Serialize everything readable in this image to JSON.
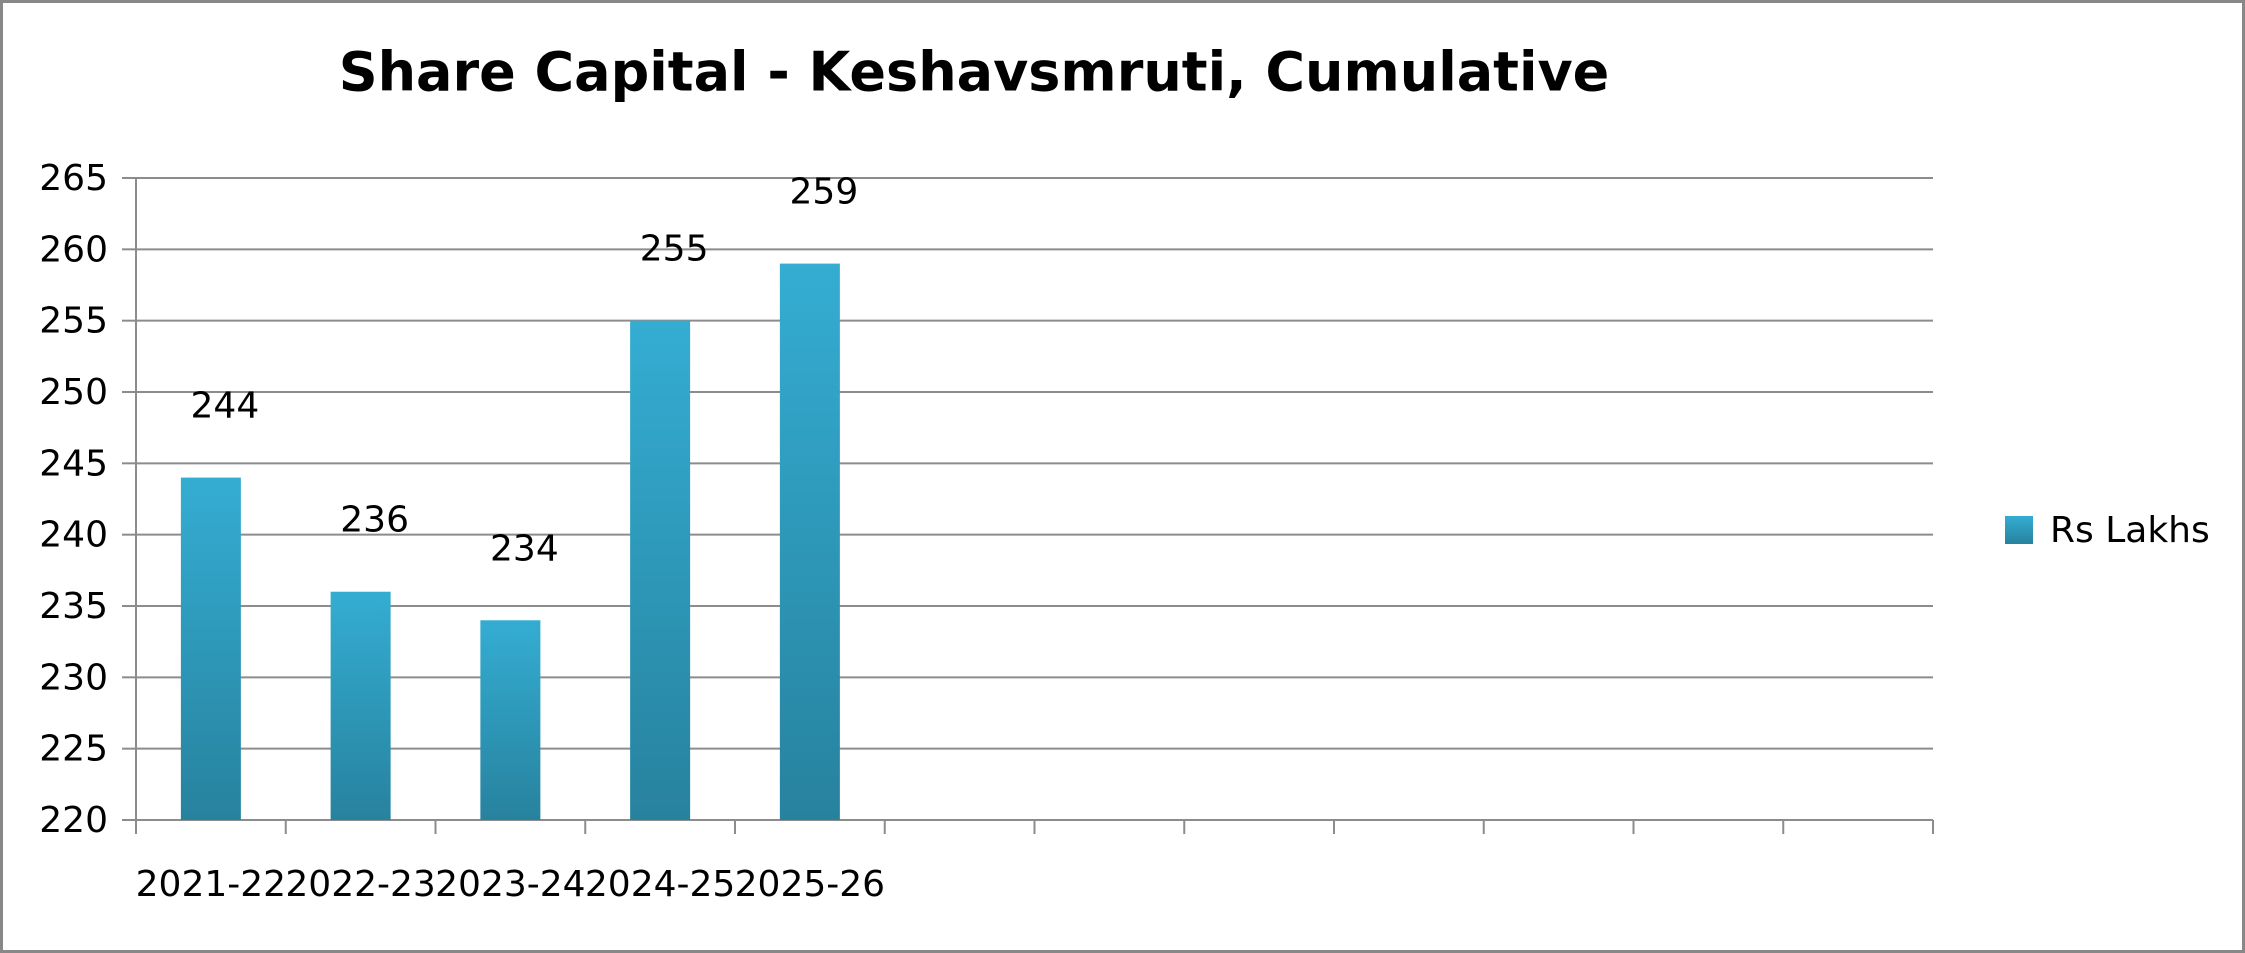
{
  "chart_data": {
    "type": "bar",
    "title": "Share Capital - Keshavsmruti, Cumulative",
    "categories": [
      "2021-22",
      "2022-23",
      "2023-24",
      "2024-25",
      "2025-26",
      null,
      null,
      null,
      null,
      null,
      null,
      null
    ],
    "series": [
      {
        "name": "Rs Lakhs",
        "color": "#34add2",
        "values": [
          244,
          236,
          234,
          255,
          259,
          null,
          null,
          null,
          null,
          null,
          null,
          null
        ]
      }
    ],
    "ylim": [
      220,
      265
    ],
    "yticks": [
      220,
      225,
      230,
      235,
      240,
      245,
      250,
      255,
      260,
      265
    ],
    "grid": true,
    "legend": "right"
  }
}
